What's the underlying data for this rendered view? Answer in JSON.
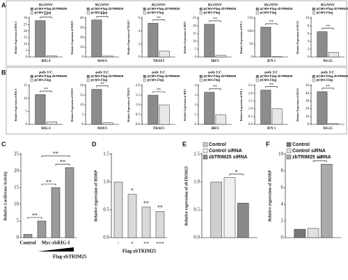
{
  "chart_data": [
    {
      "type": "bar",
      "panel": "A",
      "title": "RGNNV",
      "ylabel": "Relative Expression of RIG-I",
      "categories": [
        "RIG-I"
      ],
      "series": [
        {
          "name": "pCMV-Flag-zbTRIM25",
          "color": "#8c8c8c",
          "values": [
            28
          ]
        },
        {
          "name": "pCMV-Flag",
          "color": "#e8e8e8",
          "values": [
            1
          ]
        }
      ],
      "ylim": [
        0,
        30
      ],
      "yticks": [
        0,
        5,
        10,
        15,
        20,
        25,
        30
      ],
      "annotations": [
        "**"
      ]
    },
    {
      "type": "bar",
      "title": "RGNNV",
      "ylabel": "Relative Expression of MAVS",
      "categories": [
        "MAVS"
      ],
      "series": [
        {
          "name": "pCMV-Flag-zbTRIM25",
          "color": "#8c8c8c",
          "values": [
            38
          ]
        },
        {
          "name": "pCMV-Flag",
          "color": "#e8e8e8",
          "values": [
            1
          ]
        }
      ],
      "ylim": [
        0,
        40
      ],
      "yticks": [
        0,
        10,
        20,
        30,
        40
      ],
      "annotations": [
        "**"
      ]
    },
    {
      "type": "bar",
      "title": "RGNNV",
      "ylabel": "Relative Expression of TRAF3",
      "categories": [
        "TRAF3"
      ],
      "series": [
        {
          "name": "pCMV-Flag-zbTRIM25",
          "color": "#8c8c8c",
          "values": [
            5.2
          ]
        },
        {
          "name": "pCMV-Flag",
          "color": "#e8e8e8",
          "values": [
            0.9
          ]
        }
      ],
      "ylim": [
        0,
        6
      ],
      "yticks": [
        0,
        2,
        4,
        6
      ],
      "annotations": [
        "**"
      ]
    },
    {
      "type": "bar",
      "title": "RGNNV",
      "ylabel": "Relative Expression of IRF3",
      "categories": [
        "IRF3"
      ],
      "series": [
        {
          "name": "pCMV-Flag-zbTRIM25",
          "color": "#8c8c8c",
          "values": [
            21
          ]
        },
        {
          "name": "pCMV-Flag",
          "color": "#e8e8e8",
          "values": [
            1
          ]
        }
      ],
      "ylim": [
        0,
        25
      ],
      "yticks": [
        0,
        5,
        10,
        15,
        20,
        25
      ],
      "annotations": [
        "**"
      ]
    },
    {
      "type": "bar",
      "title": "RGNNV",
      "ylabel": "Relative Expression of IFN 1",
      "categories": [
        "IFN 1"
      ],
      "series": [
        {
          "name": "pCMV-Flag-zbTRIM25",
          "color": "#8c8c8c",
          "values": [
            115
          ]
        },
        {
          "name": "pCMV-Flag",
          "color": "#e8e8e8",
          "values": [
            1
          ]
        }
      ],
      "ylim": [
        0,
        150
      ],
      "yticks": [
        0,
        50,
        100,
        150
      ],
      "annotations": [
        "**"
      ]
    },
    {
      "type": "bar",
      "title": "RGNNV",
      "ylabel": "Relative Expression of ISG15",
      "categories": [
        "ISG15"
      ],
      "series": [
        {
          "name": "pCMV-Flag-zbTRIM25",
          "color": "#8c8c8c",
          "values": [
            6.5
          ]
        },
        {
          "name": "pCMV-Flag",
          "color": "#e8e8e8",
          "values": [
            1.2
          ]
        }
      ],
      "ylim": [
        0,
        10
      ],
      "yticks": [
        0,
        2,
        4,
        6,
        8,
        10
      ],
      "annotations": [
        "**"
      ]
    },
    {
      "type": "bar",
      "panel": "B",
      "title": "poly I:C",
      "ylabel": "Relative Expression of RIG-I",
      "categories": [
        "RIG-I"
      ],
      "series": [
        {
          "name": "pCMV-Flag-zbTRIM25",
          "color": "#8c8c8c",
          "values": [
            11.5
          ]
        },
        {
          "name": "pCMV-Flag",
          "color": "#e8e8e8",
          "values": [
            1
          ]
        }
      ],
      "ylim": [
        0,
        15
      ],
      "yticks": [
        0,
        5,
        10,
        15
      ],
      "annotations": [
        "**"
      ]
    },
    {
      "type": "bar",
      "title": "poly I:C",
      "ylabel": "Relative Expression of MAVS",
      "categories": [
        "MAVS"
      ],
      "series": [
        {
          "name": "pCMV-Flag-zbTRIM25",
          "color": "#8c8c8c",
          "values": [
            18
          ]
        },
        {
          "name": "pCMV-Flag",
          "color": "#e8e8e8",
          "values": [
            0.8
          ]
        }
      ],
      "ylim": [
        0,
        20
      ],
      "yticks": [
        0,
        5,
        10,
        15,
        20
      ],
      "annotations": [
        "**"
      ]
    },
    {
      "type": "bar",
      "title": "poly I:C",
      "ylabel": "Relative Expression of TRAF3",
      "categories": [
        "TRAF3"
      ],
      "series": [
        {
          "name": "pCMV-Flag-zbTRIM25",
          "color": "#8c8c8c",
          "values": [
            1.5
          ]
        },
        {
          "name": "pCMV-Flag",
          "color": "#e8e8e8",
          "values": [
            1.0
          ]
        }
      ],
      "ylim": [
        0,
        2
      ],
      "yticks": [
        {
          "value": 0,
          "label": "0.0"
        },
        0.5,
        {
          "value": 1,
          "label": "1.0"
        },
        1.5,
        {
          "value": 2,
          "label": "2.0"
        }
      ],
      "annotations": [
        "**"
      ]
    },
    {
      "type": "bar",
      "title": "poly I:C",
      "ylabel": "Relative Expression of IRF3",
      "categories": [
        "IRF3"
      ],
      "series": [
        {
          "name": "pCMV-Flag-zbTRIM25",
          "color": "#8c8c8c",
          "values": [
            3.3
          ]
        },
        {
          "name": "pCMV-Flag",
          "color": "#e8e8e8",
          "values": [
            1
          ]
        }
      ],
      "ylim": [
        0,
        4
      ],
      "yticks": [
        0,
        1,
        2,
        3,
        4
      ],
      "annotations": [
        "**"
      ]
    },
    {
      "type": "bar",
      "title": "poly I:C",
      "ylabel": "Relative Expression of IFN 1",
      "categories": [
        "IFN 1"
      ],
      "series": [
        {
          "name": "pCMV-Flag-zbTRIM25",
          "color": "#8c8c8c",
          "values": [
            2.2
          ]
        },
        {
          "name": "pCMV-Flag",
          "color": "#e8e8e8",
          "values": [
            1.0
          ]
        }
      ],
      "ylim": [
        0,
        2.5
      ],
      "yticks": [
        {
          "value": 0,
          "label": "0.0"
        },
        0.5,
        {
          "value": 1,
          "label": "1.0"
        },
        1.5,
        {
          "value": 2,
          "label": "2.0"
        },
        2.5
      ],
      "annotations": [
        "**"
      ]
    },
    {
      "type": "bar",
      "title": "poly I:C",
      "ylabel": "Relative Expression of ISG15",
      "categories": [
        "ISG15"
      ],
      "series": [
        {
          "name": "pCMV-Flag-zbTRIM25",
          "color": "#8c8c8c",
          "values": [
            42
          ]
        },
        {
          "name": "pCMV-Flag",
          "color": "#e8e8e8",
          "values": [
            1
          ]
        }
      ],
      "ylim": [
        0,
        50
      ],
      "yticks": [
        0,
        10,
        20,
        30,
        40,
        50
      ],
      "annotations": [
        "**"
      ]
    },
    {
      "type": "bar",
      "panel": "C",
      "ylabel": "Relative Luciferase Activity",
      "categories": [
        "Control",
        null,
        null,
        null
      ],
      "group_label": "Myc-zbRIG-I",
      "xlabel": "Flag-zbTRIM25",
      "series": [
        {
          "color": "#9a9a9a",
          "values": [
            1,
            5,
            15,
            21
          ]
        }
      ],
      "ylim": [
        0,
        25
      ],
      "yticks": [
        0,
        5,
        10,
        15,
        20,
        25
      ],
      "annotations": [
        "**",
        "**",
        "**",
        "**"
      ]
    },
    {
      "type": "bar",
      "panel": "D",
      "ylabel": "Relative expression of RDRP",
      "categories": [
        "-",
        "+",
        "++",
        "+++"
      ],
      "xlabel": "Flag-zbTRIM25",
      "series": [
        {
          "color": "#d9d9d9",
          "values": [
            1.0,
            0.78,
            0.55,
            0.47
          ]
        }
      ],
      "ylim": [
        0,
        1.5
      ],
      "yticks": [
        {
          "value": 0,
          "label": "0.0"
        },
        0.5,
        {
          "value": 1,
          "label": "1.0"
        },
        1.5
      ],
      "annotations": [
        "*",
        "**",
        "**"
      ]
    },
    {
      "type": "bar",
      "panel": "E",
      "ylabel": "Relative expression of zbTRIM25",
      "categories": [
        null
      ],
      "series": [
        {
          "name": "Control",
          "color": "#cfcfcf",
          "values": [
            1.0
          ]
        },
        {
          "name": "Control siRNA",
          "color": "#f0f0f0",
          "values": [
            1.08
          ]
        },
        {
          "name": "zbTRIM25 siRNA",
          "color": "#8a8a8a",
          "values": [
            0.62
          ]
        }
      ],
      "ylim": [
        0,
        1.5
      ],
      "yticks": [
        {
          "value": 0,
          "label": "0.0"
        },
        0.5,
        {
          "value": 1,
          "label": "1.0"
        },
        1.5
      ],
      "annotations": [
        "*"
      ]
    },
    {
      "type": "bar",
      "panel": "F",
      "ylabel": "Relative expression of RDRP",
      "categories": [
        null
      ],
      "series": [
        {
          "name": "Control",
          "color": "#777777",
          "values": [
            1.0
          ]
        },
        {
          "name": "Control siRNA",
          "color": "#e0e0e0",
          "values": [
            1.1
          ]
        },
        {
          "name": "zbTRIM25 siRNA",
          "color": "#ababab",
          "values": [
            8.8
          ]
        }
      ],
      "ylim": [
        0,
        10
      ],
      "yticks": [
        0,
        2,
        4,
        6,
        8,
        10
      ],
      "annotations": [
        "**"
      ]
    }
  ]
}
